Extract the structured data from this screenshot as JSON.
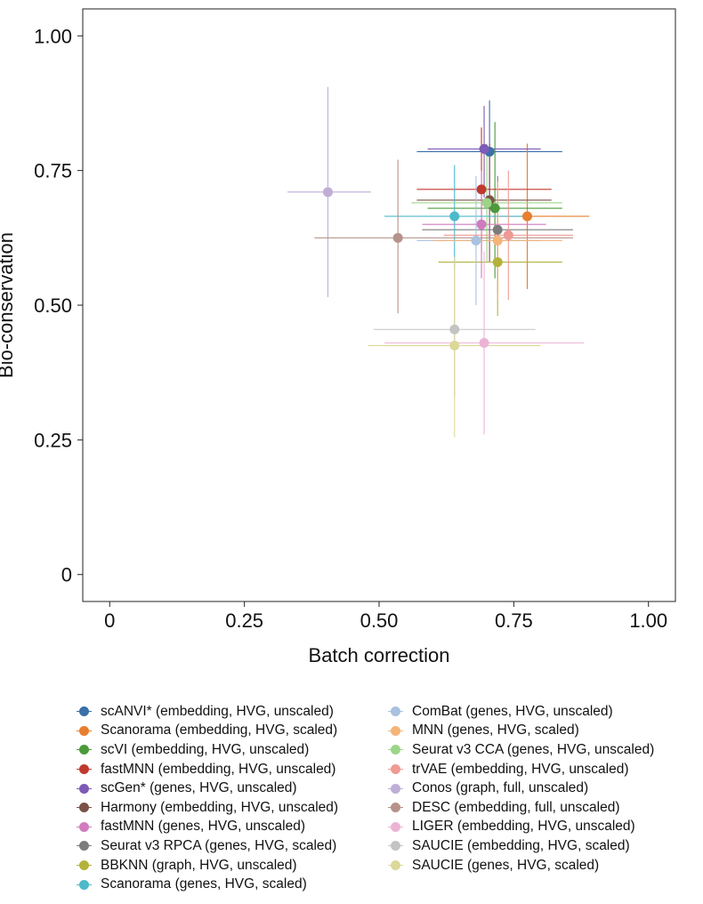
{
  "chart_data": {
    "type": "scatter",
    "xlabel": "Batch correction",
    "ylabel": "Bio-conservation",
    "xlim": [
      -0.05,
      1.05
    ],
    "ylim": [
      -0.05,
      1.05
    ],
    "xticks": [
      0,
      0.25,
      0.5,
      0.75,
      1.0
    ],
    "xtick_labels": [
      "0",
      "0.25",
      "0.50",
      "0.75",
      "1.00"
    ],
    "yticks": [
      0,
      0.25,
      0.5,
      0.75,
      1.0
    ],
    "ytick_labels": [
      "0",
      "0.25",
      "0.50",
      "0.75",
      "1.00"
    ],
    "grid": false,
    "legend_position": "bottom",
    "error_bars": true,
    "series": [
      {
        "name": "scANVI* (embedding, HVG, unscaled)",
        "color": "#3a6fa8",
        "x": 0.705,
        "y": 0.785,
        "xerr": [
          0.57,
          0.84
        ],
        "yerr": [
          0.7,
          0.88
        ]
      },
      {
        "name": "Scanorama (embedding, HVG, scaled)",
        "color": "#e87e2e",
        "x": 0.775,
        "y": 0.665,
        "xerr": [
          0.71,
          0.89
        ],
        "yerr": [
          0.53,
          0.8
        ]
      },
      {
        "name": "scVI (embedding, HVG, unscaled)",
        "color": "#4c9a3c",
        "x": 0.715,
        "y": 0.68,
        "xerr": [
          0.59,
          0.84
        ],
        "yerr": [
          0.55,
          0.84
        ]
      },
      {
        "name": "fastMNN (embedding, HVG, unscaled)",
        "color": "#c0392f",
        "x": 0.69,
        "y": 0.715,
        "xerr": [
          0.57,
          0.82
        ],
        "yerr": [
          0.6,
          0.83
        ]
      },
      {
        "name": "scGen* (genes, HVG, unscaled)",
        "color": "#7e5bb6",
        "x": 0.695,
        "y": 0.79,
        "xerr": [
          0.59,
          0.8
        ],
        "yerr": [
          0.7,
          0.87
        ]
      },
      {
        "name": "Harmony (embedding, HVG, unscaled)",
        "color": "#7b5247",
        "x": 0.705,
        "y": 0.695,
        "xerr": [
          0.57,
          0.82
        ],
        "yerr": [
          0.58,
          0.8
        ]
      },
      {
        "name": "fastMNN (genes, HVG, unscaled)",
        "color": "#d27abf",
        "x": 0.69,
        "y": 0.65,
        "xerr": [
          0.58,
          0.81
        ],
        "yerr": [
          0.55,
          0.75
        ]
      },
      {
        "name": "Seurat v3 RPCA (genes, HVG, scaled)",
        "color": "#7c7c7c",
        "x": 0.72,
        "y": 0.64,
        "xerr": [
          0.58,
          0.86
        ],
        "yerr": [
          0.52,
          0.74
        ]
      },
      {
        "name": "BBKNN (graph, HVG, unscaled)",
        "color": "#b4b23a",
        "x": 0.72,
        "y": 0.58,
        "xerr": [
          0.61,
          0.84
        ],
        "yerr": [
          0.48,
          0.68
        ]
      },
      {
        "name": "Scanorama (genes, HVG, scaled)",
        "color": "#4db9c9",
        "x": 0.64,
        "y": 0.665,
        "xerr": [
          0.51,
          0.77
        ],
        "yerr": [
          0.57,
          0.76
        ]
      },
      {
        "name": "ComBat (genes, HVG, unscaled)",
        "color": "#a8c2df",
        "x": 0.68,
        "y": 0.62,
        "xerr": [
          0.57,
          0.8
        ],
        "yerr": [
          0.5,
          0.74
        ]
      },
      {
        "name": "MNN (genes, HVG, scaled)",
        "color": "#f4b47a",
        "x": 0.72,
        "y": 0.62,
        "xerr": [
          0.6,
          0.84
        ],
        "yerr": [
          0.51,
          0.73
        ]
      },
      {
        "name": "Seurat v3 CCA (genes, HVG, unscaled)",
        "color": "#9dd588",
        "x": 0.7,
        "y": 0.69,
        "xerr": [
          0.56,
          0.84
        ],
        "yerr": [
          0.58,
          0.8
        ]
      },
      {
        "name": "trVAE (embedding, HVG, unscaled)",
        "color": "#ef9a94",
        "x": 0.74,
        "y": 0.63,
        "xerr": [
          0.62,
          0.86
        ],
        "yerr": [
          0.51,
          0.75
        ]
      },
      {
        "name": "Conos (graph, full, unscaled)",
        "color": "#c0aed6",
        "x": 0.405,
        "y": 0.71,
        "xerr": [
          0.33,
          0.485
        ],
        "yerr": [
          0.515,
          0.905
        ]
      },
      {
        "name": "DESC (embedding, full, unscaled)",
        "color": "#b5938a",
        "x": 0.535,
        "y": 0.625,
        "xerr": [
          0.38,
          0.86
        ],
        "yerr": [
          0.485,
          0.77
        ]
      },
      {
        "name": "LIGER (embedding, HVG, unscaled)",
        "color": "#ecb3d5",
        "x": 0.695,
        "y": 0.43,
        "xerr": [
          0.51,
          0.88
        ],
        "yerr": [
          0.26,
          0.6
        ]
      },
      {
        "name": "SAUCIE (embedding, HVG, scaled)",
        "color": "#c4c4c4",
        "x": 0.64,
        "y": 0.455,
        "xerr": [
          0.49,
          0.79
        ],
        "yerr": [
          0.33,
          0.58
        ]
      },
      {
        "name": "SAUCIE (genes, HVG, scaled)",
        "color": "#dcd89a",
        "x": 0.64,
        "y": 0.425,
        "xerr": [
          0.48,
          0.8
        ],
        "yerr": [
          0.255,
          0.59
        ]
      }
    ]
  }
}
